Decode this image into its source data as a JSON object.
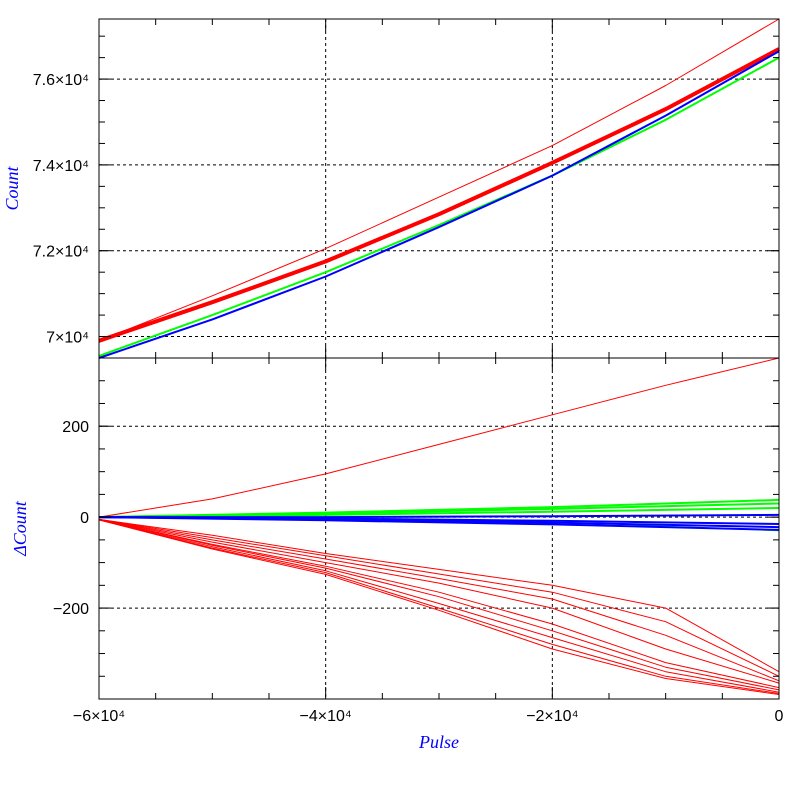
{
  "chart_data": [
    {
      "type": "line",
      "panel": "top",
      "ylabel": "Count",
      "xlim": [
        -60000,
        0
      ],
      "ylim": [
        69500,
        77400
      ],
      "grid": true,
      "colors": {
        "red": "#ff0000",
        "green": "#00ff00",
        "blue": "#0000ff"
      },
      "y_ticks": [
        {
          "value": 70000,
          "label": "7×10⁴"
        },
        {
          "value": 72000,
          "label": "7.2×10⁴"
        },
        {
          "value": 74000,
          "label": "7.4×10⁴"
        },
        {
          "value": 76000,
          "label": "7.6×10⁴"
        }
      ],
      "series": [
        {
          "color": "#ff0000",
          "width": 1,
          "x": [
            -60000,
            -50000,
            -40000,
            -30000,
            -20000,
            -10000,
            0
          ],
          "y": [
            69900,
            70950,
            72050,
            73250,
            74450,
            75850,
            77400
          ]
        },
        {
          "color": "#ff0000",
          "width": 4,
          "x": [
            -60000,
            -50000,
            -40000,
            -30000,
            -20000,
            -10000,
            0
          ],
          "y": [
            69900,
            70800,
            71750,
            72850,
            74050,
            75300,
            76700
          ]
        },
        {
          "color": "#00ff00",
          "width": 2,
          "x": [
            -60000,
            -50000,
            -40000,
            -30000,
            -20000,
            -10000,
            0
          ],
          "y": [
            69550,
            70500,
            71500,
            72600,
            73750,
            75050,
            76500
          ]
        },
        {
          "color": "#0000ff",
          "width": 2,
          "x": [
            -60000,
            -50000,
            -40000,
            -30000,
            -20000,
            -10000,
            0
          ],
          "y": [
            69500,
            70400,
            71400,
            72550,
            73750,
            75150,
            76650
          ]
        }
      ]
    },
    {
      "type": "line",
      "panel": "bottom",
      "xlabel": "Pulse",
      "ylabel": "ΔCount",
      "xlim": [
        -60000,
        0
      ],
      "ylim": [
        -400,
        350
      ],
      "grid": true,
      "x_ticks": [
        {
          "value": -60000,
          "label": "−6×10⁴"
        },
        {
          "value": -40000,
          "label": "−4×10⁴"
        },
        {
          "value": -20000,
          "label": "−2×10⁴"
        },
        {
          "value": 0,
          "label": "0"
        }
      ],
      "y_ticks": [
        {
          "value": -200,
          "label": "−200"
        },
        {
          "value": 0,
          "label": "0"
        },
        {
          "value": 200,
          "label": "200"
        }
      ],
      "series": [
        {
          "color": "#ff0000",
          "width": 1,
          "x": [
            -60000,
            -50000,
            -40000,
            -30000,
            -20000,
            -10000,
            0
          ],
          "y": [
            0,
            40,
            95,
            160,
            225,
            290,
            350
          ]
        },
        {
          "color": "#ff0000",
          "width": 1,
          "x": [
            -60000,
            -50000,
            -40000,
            -30000,
            -20000,
            -10000,
            0
          ],
          "y": [
            -5,
            -40,
            -80,
            -115,
            -150,
            -200,
            -340
          ]
        },
        {
          "color": "#ff0000",
          "width": 1,
          "x": [
            -60000,
            -50000,
            -40000,
            -30000,
            -20000,
            -10000,
            0
          ],
          "y": [
            -5,
            -45,
            -85,
            -125,
            -165,
            -230,
            -350
          ]
        },
        {
          "color": "#ff0000",
          "width": 1,
          "x": [
            -60000,
            -50000,
            -40000,
            -30000,
            -20000,
            -10000,
            0
          ],
          "y": [
            -5,
            -50,
            -92,
            -135,
            -180,
            -260,
            -360
          ]
        },
        {
          "color": "#ff0000",
          "width": 1,
          "x": [
            -60000,
            -50000,
            -40000,
            -30000,
            -20000,
            -10000,
            0
          ],
          "y": [
            -5,
            -55,
            -100,
            -145,
            -200,
            -290,
            -365
          ]
        },
        {
          "color": "#ff0000",
          "width": 1,
          "x": [
            -60000,
            -50000,
            -40000,
            -30000,
            -20000,
            -10000,
            0
          ],
          "y": [
            -5,
            -60,
            -108,
            -165,
            -235,
            -320,
            -375
          ]
        },
        {
          "color": "#ff0000",
          "width": 1,
          "x": [
            -60000,
            -50000,
            -40000,
            -30000,
            -20000,
            -10000,
            0
          ],
          "y": [
            -5,
            -62,
            -112,
            -175,
            -250,
            -330,
            -380
          ]
        },
        {
          "color": "#ff0000",
          "width": 1,
          "x": [
            -60000,
            -50000,
            -40000,
            -30000,
            -20000,
            -10000,
            0
          ],
          "y": [
            -6,
            -65,
            -118,
            -190,
            -265,
            -340,
            -385
          ]
        },
        {
          "color": "#ff0000",
          "width": 1,
          "x": [
            -60000,
            -50000,
            -40000,
            -30000,
            -20000,
            -10000,
            0
          ],
          "y": [
            -6,
            -68,
            -122,
            -200,
            -280,
            -350,
            -388
          ]
        },
        {
          "color": "#ff0000",
          "width": 1,
          "x": [
            -60000,
            -50000,
            -40000,
            -30000,
            -20000,
            -10000,
            0
          ],
          "y": [
            -6,
            -70,
            -126,
            -205,
            -290,
            -355,
            -390
          ]
        },
        {
          "color": "#00ff00",
          "width": 2,
          "x": [
            -60000,
            -40000,
            -20000,
            0
          ],
          "y": [
            0,
            5,
            12,
            20
          ]
        },
        {
          "color": "#00ff00",
          "width": 2,
          "x": [
            -60000,
            -40000,
            -20000,
            0
          ],
          "y": [
            0,
            8,
            18,
            30
          ]
        },
        {
          "color": "#00ff00",
          "width": 2,
          "x": [
            -60000,
            -40000,
            -20000,
            0
          ],
          "y": [
            0,
            10,
            22,
            38
          ]
        },
        {
          "color": "#00ff00",
          "width": 1,
          "x": [
            -60000,
            -40000,
            -20000,
            0
          ],
          "y": [
            0,
            -2,
            -10,
            -30
          ]
        },
        {
          "color": "#0000ff",
          "width": 2,
          "x": [
            -60000,
            -40000,
            -20000,
            0
          ],
          "y": [
            0,
            -3,
            -8,
            -15
          ]
        },
        {
          "color": "#0000ff",
          "width": 2,
          "x": [
            -60000,
            -40000,
            -20000,
            0
          ],
          "y": [
            0,
            -5,
            -12,
            -22
          ]
        },
        {
          "color": "#0000ff",
          "width": 2,
          "x": [
            -60000,
            -40000,
            -20000,
            0
          ],
          "y": [
            0,
            -7,
            -16,
            -28
          ]
        },
        {
          "color": "#0000ff",
          "width": 2,
          "x": [
            -60000,
            -40000,
            -20000,
            0
          ],
          "y": [
            0,
            0,
            2,
            5
          ]
        }
      ]
    }
  ]
}
